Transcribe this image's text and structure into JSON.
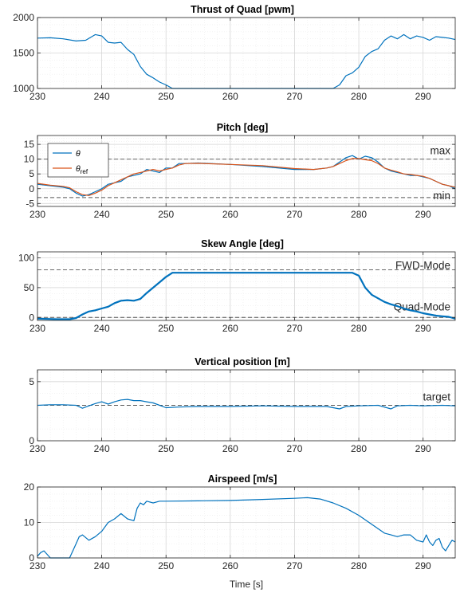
{
  "chart_data": [
    {
      "type": "line",
      "title": "Thrust of Quad [pwm]",
      "xlim": [
        230,
        295
      ],
      "ylim": [
        1000,
        2000
      ],
      "xticks": [
        230,
        240,
        250,
        260,
        270,
        280,
        290
      ],
      "yticks": [
        1000,
        1500,
        2000
      ],
      "grid": true,
      "series": [
        {
          "color": "#0072BD",
          "x": [
            230,
            232,
            234,
            236,
            237.5,
            239,
            240,
            241,
            242,
            243,
            244,
            245,
            246,
            247,
            248,
            249,
            250,
            251,
            252,
            260,
            270,
            276,
            277,
            278,
            279,
            280,
            281,
            282,
            283,
            284,
            285,
            286,
            287,
            288,
            289,
            290,
            291,
            292,
            293,
            294,
            295
          ],
          "y": [
            1710,
            1715,
            1700,
            1670,
            1680,
            1760,
            1740,
            1650,
            1640,
            1650,
            1550,
            1480,
            1310,
            1200,
            1150,
            1090,
            1050,
            1000,
            1000,
            1000,
            1000,
            1000,
            1050,
            1180,
            1220,
            1300,
            1450,
            1520,
            1560,
            1680,
            1740,
            1700,
            1760,
            1700,
            1740,
            1720,
            1680,
            1730,
            1720,
            1710,
            1690
          ]
        }
      ]
    },
    {
      "type": "line",
      "title": "Pitch [deg]",
      "xlim": [
        230,
        295
      ],
      "ylim": [
        -6,
        18
      ],
      "xticks": [
        230,
        240,
        250,
        260,
        270,
        280,
        290
      ],
      "yticks": [
        -5,
        0,
        5,
        10,
        15
      ],
      "grid": true,
      "legend": "top-left",
      "reference_lines": [
        {
          "y": 10,
          "label": "max"
        },
        {
          "y": -3,
          "label": "min"
        }
      ],
      "series": [
        {
          "name": "θ",
          "color": "#0072BD",
          "x": [
            230,
            232,
            234,
            235,
            236,
            237,
            238,
            239,
            240,
            241,
            242,
            243,
            244,
            245,
            246,
            247,
            248,
            249,
            250,
            251,
            252,
            253,
            255,
            260,
            265,
            270,
            273,
            275,
            276,
            277,
            278,
            279,
            280,
            281,
            282,
            283,
            284,
            285,
            286,
            287,
            288,
            289,
            290,
            291,
            292,
            293,
            294,
            295
          ],
          "y": [
            1.5,
            1,
            0.5,
            0,
            -1.5,
            -2.5,
            -2,
            -1,
            0,
            1.5,
            2,
            2.5,
            4,
            4.5,
            5,
            6.5,
            6,
            5.5,
            7,
            7,
            8.5,
            8.5,
            8.7,
            8.2,
            7.5,
            6.5,
            6.5,
            7,
            7.5,
            9,
            10.5,
            11.2,
            10,
            11,
            10.5,
            9,
            7,
            6,
            5.5,
            5,
            4.5,
            4.5,
            4,
            3.5,
            2.5,
            1.5,
            1,
            0
          ]
        },
        {
          "name": "θref",
          "color": "#D95319",
          "x": [
            230,
            232,
            234,
            235,
            236,
            237,
            238,
            239,
            240,
            241,
            242,
            243,
            244,
            245,
            246,
            247,
            248,
            249,
            250,
            251,
            252,
            253,
            255,
            260,
            265,
            270,
            273,
            275,
            276,
            277,
            278,
            279,
            280,
            281,
            282,
            283,
            284,
            285,
            286,
            287,
            288,
            289,
            290,
            291,
            292,
            293,
            294,
            295
          ],
          "y": [
            1.8,
            1.2,
            0.8,
            0.3,
            -1,
            -2,
            -2.3,
            -1.5,
            -0.5,
            1,
            2,
            3,
            4,
            5,
            5.5,
            6,
            6.5,
            6,
            6.5,
            7,
            8,
            8.5,
            8.6,
            8.2,
            7.8,
            6.8,
            6.5,
            7,
            7.5,
            8.5,
            9.5,
            10.2,
            10.2,
            9.8,
            9.5,
            8.5,
            7,
            6.3,
            5.7,
            5,
            4.8,
            4.5,
            4.2,
            3.5,
            2.5,
            1.5,
            1,
            0.5
          ]
        }
      ]
    },
    {
      "type": "line",
      "title": "Skew Angle [deg]",
      "xlim": [
        230,
        295
      ],
      "ylim": [
        -5,
        110
      ],
      "xticks": [
        230,
        240,
        250,
        260,
        270,
        280,
        290
      ],
      "yticks": [
        0,
        50,
        100
      ],
      "grid": true,
      "reference_lines": [
        {
          "y": 80,
          "label": "FWD-Mode"
        },
        {
          "y": 0,
          "label": "Quad-Mode"
        }
      ],
      "series": [
        {
          "color": "#0072BD",
          "x": [
            230,
            233,
            235,
            236,
            237,
            238,
            239,
            240,
            241,
            242,
            243,
            244,
            245,
            246,
            247,
            248,
            249,
            250,
            251,
            260,
            270,
            279,
            280,
            281,
            282,
            283,
            284,
            285,
            286,
            287,
            288,
            289,
            290,
            291,
            292,
            293,
            294,
            295
          ],
          "y": [
            -2,
            -3,
            -3,
            -1,
            5,
            10,
            12,
            15,
            18,
            24,
            28,
            29,
            28,
            31,
            41,
            50,
            59,
            68,
            75,
            75,
            75,
            75,
            70,
            50,
            38,
            32,
            26,
            22,
            19,
            15,
            12,
            10,
            7,
            5,
            3,
            2,
            1,
            -2
          ]
        }
      ]
    },
    {
      "type": "line",
      "title": "Vertical position [m]",
      "xlim": [
        230,
        295
      ],
      "ylim": [
        0,
        6
      ],
      "xticks": [
        230,
        240,
        250,
        260,
        270,
        280,
        290
      ],
      "yticks": [
        0,
        5
      ],
      "grid": true,
      "reference_lines": [
        {
          "y": 3.0,
          "label": "target"
        }
      ],
      "series": [
        {
          "color": "#0072BD",
          "x": [
            230,
            232,
            234,
            236,
            237,
            238,
            239,
            240,
            241,
            242,
            243,
            244,
            245,
            246,
            247,
            248,
            249,
            250,
            252,
            255,
            260,
            265,
            270,
            275,
            277,
            278,
            280,
            283,
            285,
            286,
            288,
            290,
            293,
            295
          ],
          "y": [
            3.0,
            3.05,
            3.05,
            3.0,
            2.75,
            2.95,
            3.15,
            3.3,
            3.1,
            3.3,
            3.45,
            3.5,
            3.4,
            3.4,
            3.3,
            3.2,
            3.0,
            2.8,
            2.85,
            2.9,
            2.9,
            2.95,
            2.9,
            2.9,
            2.7,
            2.9,
            2.95,
            3.0,
            2.7,
            2.95,
            3.0,
            2.95,
            3.0,
            2.95
          ]
        }
      ]
    },
    {
      "type": "line",
      "title": "Airspeed [m/s]",
      "xlabel": "Time [s]",
      "xlim": [
        230,
        295
      ],
      "ylim": [
        0,
        20
      ],
      "xticks": [
        230,
        240,
        250,
        260,
        270,
        280,
        290
      ],
      "yticks": [
        0,
        10,
        20
      ],
      "grid": true,
      "series": [
        {
          "color": "#0072BD",
          "x": [
            230,
            230.5,
            231,
            231.5,
            232,
            232.5,
            233,
            234,
            235,
            236,
            236.5,
            237,
            238,
            239,
            240,
            241,
            242,
            243,
            244,
            245,
            245.5,
            246,
            246.5,
            247,
            248,
            249,
            250,
            255,
            260,
            265,
            270,
            272,
            274,
            276,
            278,
            280,
            282,
            284,
            285,
            286,
            287,
            288,
            289,
            290,
            290.5,
            291,
            291.5,
            292,
            292.5,
            293,
            293.5,
            294,
            294.5,
            295
          ],
          "y": [
            0.5,
            1.5,
            2,
            1,
            0,
            0,
            0,
            0,
            0,
            4,
            6,
            6.5,
            5,
            6,
            7.5,
            10,
            11,
            12.5,
            11,
            10.5,
            14,
            15.5,
            15,
            16,
            15.5,
            16,
            16,
            16.1,
            16.2,
            16.5,
            16.8,
            17,
            16.6,
            15.5,
            14,
            12,
            9.5,
            7,
            6.5,
            6,
            6.5,
            6.5,
            5,
            4.5,
            6.5,
            4.5,
            3.5,
            5,
            5.5,
            3,
            2,
            3.5,
            5,
            4.5
          ]
        }
      ]
    }
  ]
}
